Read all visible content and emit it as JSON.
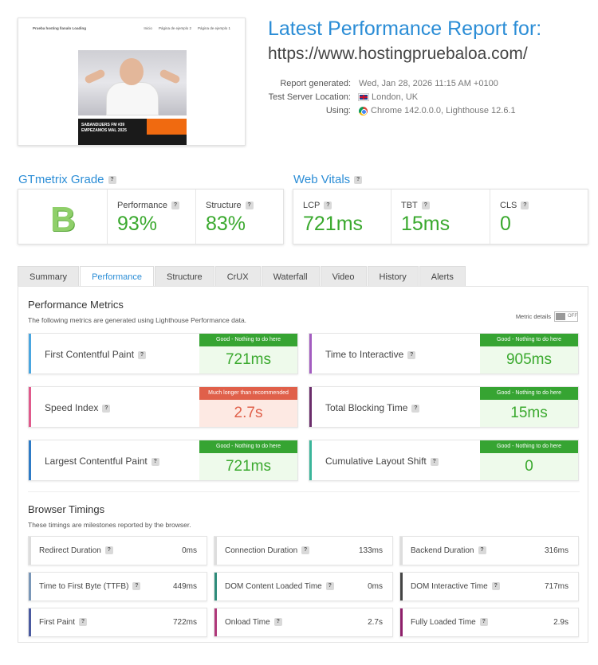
{
  "thumbnail": {
    "site_name": "Prueba hosting llanalo Loading",
    "nav": [
      "Inicio",
      "Página de ejemplo 2",
      "Página de ejemplo 1"
    ],
    "banner_line1": "SABANDIJERS FM #39",
    "banner_line2": "EMPEZAMOS MAL 2025"
  },
  "header": {
    "title": "Latest Performance Report for:",
    "url": "https://www.hostingpruebaloa.com/",
    "report_generated_label": "Report generated:",
    "report_generated_value": "Wed, Jan 28, 2026 11:15 AM +0100",
    "location_label": "Test Server Location:",
    "location_value": "London, UK",
    "using_label": "Using:",
    "using_value": "Chrome 142.0.0.0, Lighthouse 12.6.1"
  },
  "grade": {
    "heading": "GTmetrix Grade",
    "letter": "B",
    "performance_label": "Performance",
    "performance_value": "93%",
    "structure_label": "Structure",
    "structure_value": "83%"
  },
  "vitals": {
    "heading": "Web Vitals",
    "lcp_label": "LCP",
    "lcp_value": "721ms",
    "tbt_label": "TBT",
    "tbt_value": "15ms",
    "cls_label": "CLS",
    "cls_value": "0"
  },
  "tabs": [
    "Summary",
    "Performance",
    "Structure",
    "CrUX",
    "Waterfall",
    "Video",
    "History",
    "Alerts"
  ],
  "active_tab": "Performance",
  "performance_metrics": {
    "heading": "Performance Metrics",
    "subtitle": "The following metrics are generated using Lighthouse Performance data.",
    "toggle_label": "Metric details",
    "toggle_state": "OFF",
    "items": [
      {
        "name": "First Contentful Paint",
        "badge": "Good - Nothing to do here",
        "value": "721ms",
        "status": "good",
        "color": "#4aa6e0"
      },
      {
        "name": "Time to Interactive",
        "badge": "Good - Nothing to do here",
        "value": "905ms",
        "status": "good",
        "color": "#a35cc0"
      },
      {
        "name": "Speed Index",
        "badge": "Much longer than recommended",
        "value": "2.7s",
        "status": "bad",
        "color": "#e05a8c"
      },
      {
        "name": "Total Blocking Time",
        "badge": "Good - Nothing to do here",
        "value": "15ms",
        "status": "good",
        "color": "#6b2d6b"
      },
      {
        "name": "Largest Contentful Paint",
        "badge": "Good - Nothing to do here",
        "value": "721ms",
        "status": "good",
        "color": "#2e7bc6"
      },
      {
        "name": "Cumulative Layout Shift",
        "badge": "Good - Nothing to do here",
        "value": "0",
        "status": "good",
        "color": "#3ab59a"
      }
    ]
  },
  "browser_timings": {
    "heading": "Browser Timings",
    "subtitle": "These timings are milestones reported by the browser.",
    "items": [
      {
        "name": "Redirect Duration",
        "value": "0ms",
        "color": "#dddddd"
      },
      {
        "name": "Connection Duration",
        "value": "133ms",
        "color": "#dddddd"
      },
      {
        "name": "Backend Duration",
        "value": "316ms",
        "color": "#dddddd"
      },
      {
        "name": "Time to First Byte (TTFB)",
        "value": "449ms",
        "color": "#7a97b8"
      },
      {
        "name": "DOM Content Loaded Time",
        "value": "0ms",
        "color": "#2e8c7a"
      },
      {
        "name": "DOM Interactive Time",
        "value": "717ms",
        "color": "#444444"
      },
      {
        "name": "First Paint",
        "value": "722ms",
        "color": "#4a5aa0"
      },
      {
        "name": "Onload Time",
        "value": "2.7s",
        "color": "#b0387a"
      },
      {
        "name": "Fully Loaded Time",
        "value": "2.9s",
        "color": "#8e1f6a"
      }
    ]
  }
}
